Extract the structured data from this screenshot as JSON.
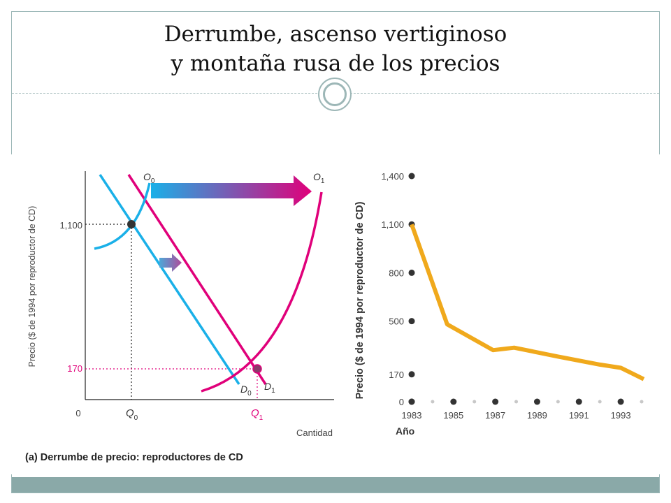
{
  "slide": {
    "title_line1": "Derrumbe, ascenso vertiginoso",
    "title_line2": "y montaña rusa de los precios"
  },
  "colors": {
    "frame": "#9bb7b7",
    "footer": "#8aa9a8",
    "supply": "#e0007a",
    "demand0": "#1ab0e8",
    "demand1": "#e0007a",
    "dotted_170": "#e0007a",
    "price_line": "#f0a91c",
    "marker": "#333333"
  },
  "chart_data": [
    {
      "type": "line",
      "caption": "(a) Derrumbe de precio: reproductores de CD",
      "ylabel": "Precio ($ de 1994 por reproductor de CD)",
      "xlabel": "Cantidad",
      "y_ticks": [
        "1,100",
        "170",
        "0"
      ],
      "x_ticks": [
        {
          "base": "Q",
          "sub": "0"
        },
        {
          "base": "Q",
          "sub": "1"
        }
      ],
      "curve_labels": {
        "O0": {
          "base": "O",
          "sub": "0"
        },
        "O1": {
          "base": "O",
          "sub": "1"
        },
        "D0": {
          "base": "D",
          "sub": "0"
        },
        "D1": {
          "base": "D",
          "sub": "1"
        }
      },
      "equilibria": [
        {
          "quantity": "Q0",
          "price": 1100
        },
        {
          "quantity": "Q1",
          "price": 170
        }
      ]
    },
    {
      "type": "line",
      "ylabel": "Precio ($ de 1994 por reproductor de CD)",
      "xlabel": "Año",
      "y_ticks": [
        "1,400",
        "1,100",
        "800",
        "500",
        "170",
        "0"
      ],
      "y_tick_values": [
        1400,
        1100,
        800,
        500,
        170,
        0
      ],
      "x_ticks": [
        "1983",
        "1985",
        "1987",
        "1989",
        "1991",
        "1993"
      ],
      "x_tick_values": [
        1983,
        1985,
        1987,
        1989,
        1991,
        1993
      ],
      "ylim": [
        0,
        1400
      ],
      "xlim": [
        1983,
        1994.1
      ],
      "series": [
        {
          "x": [
            1983,
            1984.7,
            1986.9,
            1987.9,
            1990,
            1992,
            1993,
            1994.1
          ],
          "y": [
            1100,
            480,
            320,
            335,
            280,
            230,
            210,
            140
          ]
        }
      ]
    }
  ]
}
